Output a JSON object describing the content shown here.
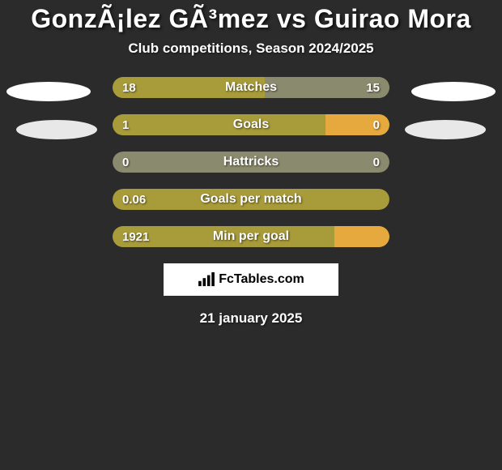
{
  "title": "GonzÃ¡lez GÃ³mez vs Guirao Mora",
  "subtitle": "Club competitions, Season 2024/2025",
  "colors": {
    "background": "#2b2b2b",
    "bar_olive": "#a89b3a",
    "bar_muted": "#8a8a6e",
    "bar_orange": "#e6a93e",
    "text": "#ffffff",
    "ellipse": "#ffffff",
    "ellipse_muted": "#e8e8e8"
  },
  "stats": [
    {
      "label": "Matches",
      "left_value": "18",
      "right_value": "15",
      "left_pct": 55,
      "right_pct": 45,
      "left_color": "#a89b3a",
      "right_color": "#8a8a6e",
      "track_color": "#a89b3a"
    },
    {
      "label": "Goals",
      "left_value": "1",
      "right_value": "0",
      "left_pct": 77,
      "right_pct": 23,
      "left_color": "#a89b3a",
      "right_color": "#e6a93e",
      "track_color": "#a89b3a"
    },
    {
      "label": "Hattricks",
      "left_value": "0",
      "right_value": "0",
      "left_pct": 0,
      "right_pct": 0,
      "left_color": "#8a8a6e",
      "right_color": "#8a8a6e",
      "track_color": "#8a8a6e"
    },
    {
      "label": "Goals per match",
      "left_value": "0.06",
      "right_value": "",
      "left_pct": 100,
      "right_pct": 0,
      "left_color": "#a89b3a",
      "right_color": "#e6a93e",
      "track_color": "#a89b3a"
    },
    {
      "label": "Min per goal",
      "left_value": "1921",
      "right_value": "",
      "left_pct": 80,
      "right_pct": 20,
      "left_color": "#a89b3a",
      "right_color": "#e6a93e",
      "track_color": "#a89b3a"
    }
  ],
  "logo": {
    "text": "FcTables.com"
  },
  "footer_date": "21 january 2025"
}
